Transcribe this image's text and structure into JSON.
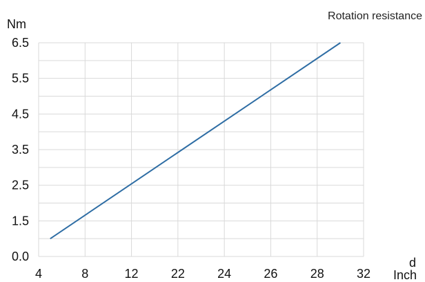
{
  "chart_data": {
    "type": "line",
    "title": "Rotation resistance",
    "ylabel": "Nm",
    "xlabel_top": "d",
    "xlabel": "Inch",
    "x_ticks": [
      "4",
      "8",
      "12",
      "22",
      "24",
      "26",
      "28",
      "32"
    ],
    "y_ticks": [
      "0.0",
      "1.5",
      "2.5",
      "3.5",
      "4.5",
      "5.5",
      "6.5"
    ],
    "grid": true,
    "series": [
      {
        "color": "#2e6da4",
        "x": [
          5.0,
          30.0
        ],
        "y": [
          0.75,
          6.5
        ]
      }
    ]
  }
}
